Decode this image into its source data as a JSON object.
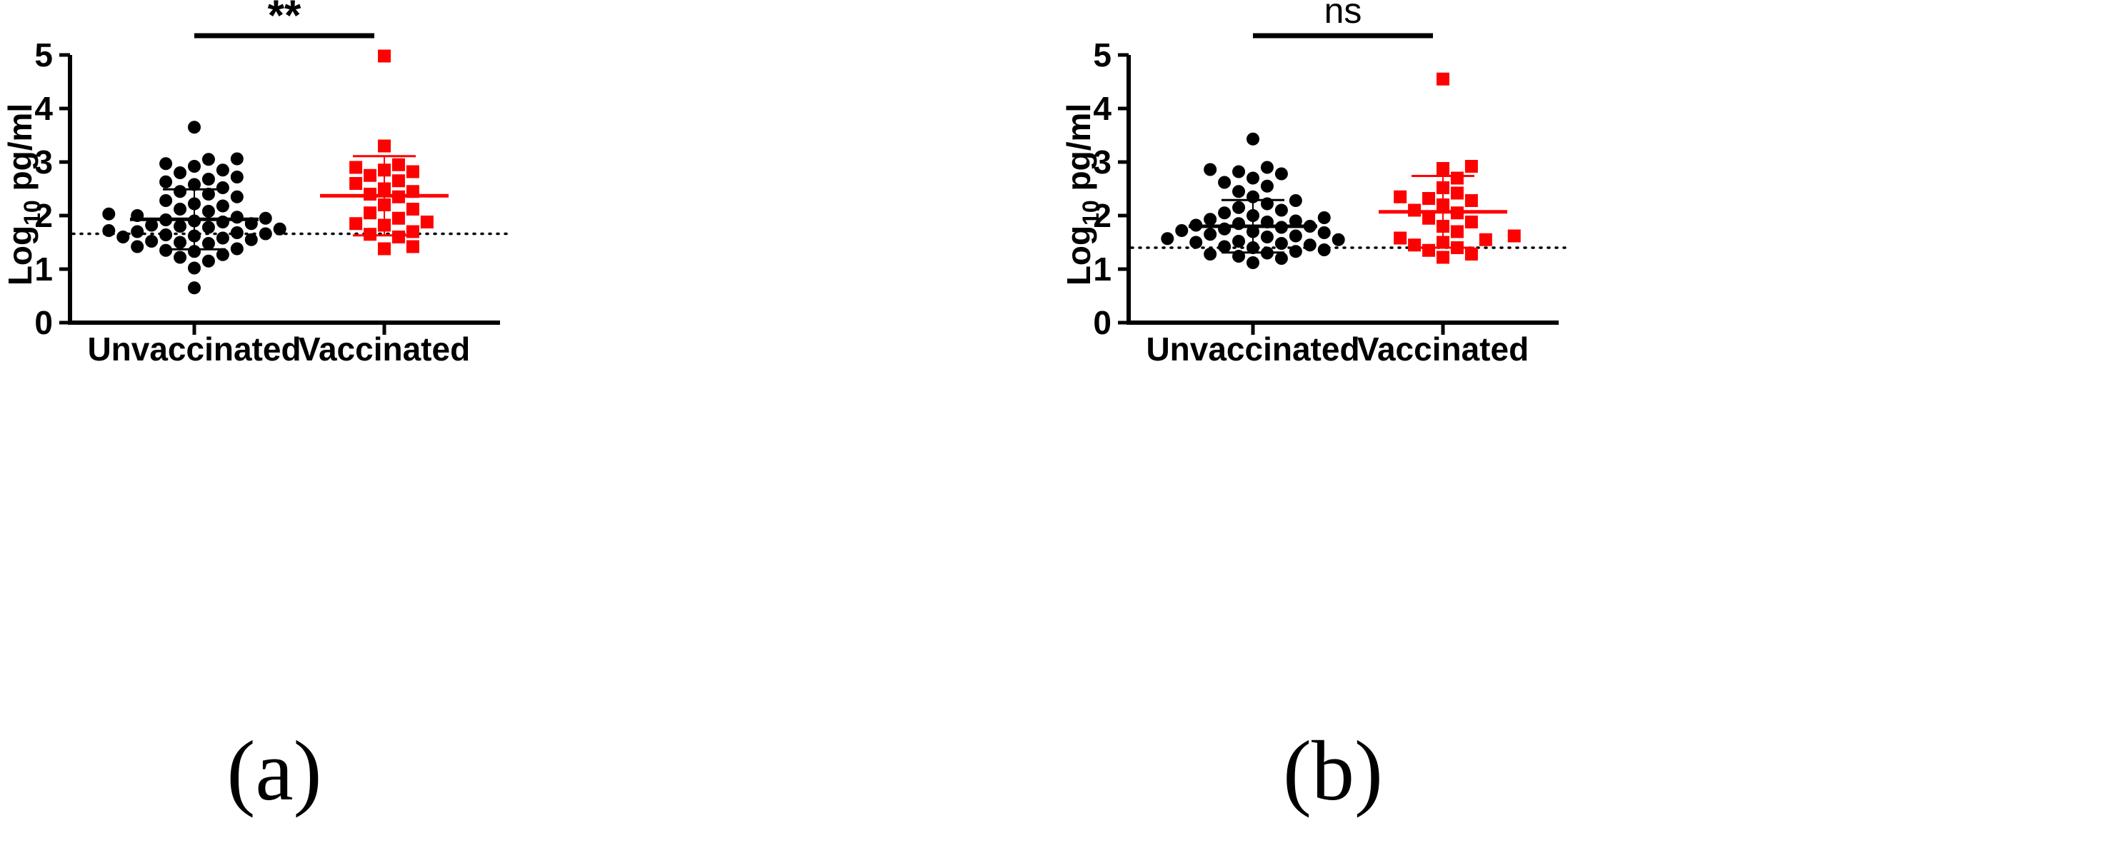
{
  "chart_data": [
    {
      "type": "scatter",
      "panel_label": "(a)",
      "ylabel_main": "Log",
      "ylabel_sub": "10",
      "ylabel_unit": " pg/ml",
      "ylim": [
        0,
        5
      ],
      "yticks": [
        0,
        1,
        2,
        3,
        4,
        5
      ],
      "categories": [
        "Unvaccinated",
        "Vaccinated"
      ],
      "significance": "**",
      "detection_limit": 1.66,
      "series": [
        {
          "name": "Unvaccinated",
          "color": "#000000",
          "marker": "circle",
          "mean": 1.93,
          "sd_upper": 2.49,
          "sd_lower": 1.37,
          "values": [
            0.65,
            1.02,
            1.15,
            1.22,
            1.27,
            1.33,
            1.35,
            1.38,
            1.42,
            1.48,
            1.5,
            1.52,
            1.55,
            1.58,
            1.6,
            1.62,
            1.64,
            1.66,
            1.68,
            1.7,
            1.72,
            1.75,
            1.78,
            1.8,
            1.82,
            1.85,
            1.88,
            1.9,
            1.92,
            1.95,
            1.97,
            2.0,
            2.03,
            2.08,
            2.12,
            2.18,
            2.22,
            2.28,
            2.35,
            2.4,
            2.45,
            2.52,
            2.58,
            2.63,
            2.68,
            2.72,
            2.8,
            2.85,
            2.92,
            2.97,
            3.05,
            3.06,
            3.65
          ]
        },
        {
          "name": "Vaccinated",
          "color": "#ff0000",
          "marker": "square",
          "mean": 2.37,
          "sd_upper": 3.11,
          "sd_lower": 1.63,
          "values": [
            1.38,
            1.42,
            1.6,
            1.65,
            1.7,
            1.82,
            1.85,
            1.88,
            1.95,
            2.05,
            2.12,
            2.2,
            2.35,
            2.4,
            2.45,
            2.5,
            2.6,
            2.65,
            2.75,
            2.82,
            2.85,
            2.9,
            2.95,
            3.3,
            4.98
          ]
        }
      ]
    },
    {
      "type": "scatter",
      "panel_label": "(b)",
      "ylabel_main": "Log",
      "ylabel_sub": "10",
      "ylabel_unit": " pg/ml",
      "ylim": [
        0,
        5
      ],
      "yticks": [
        0,
        1,
        2,
        3,
        4,
        5
      ],
      "categories": [
        "Unvaccinated",
        "Vaccinated"
      ],
      "significance": "ns",
      "detection_limit": 1.4,
      "series": [
        {
          "name": "Unvaccinated",
          "color": "#000000",
          "marker": "circle",
          "mean": 1.8,
          "sd_upper": 2.29,
          "sd_lower": 1.31,
          "values": [
            1.12,
            1.2,
            1.24,
            1.28,
            1.3,
            1.33,
            1.36,
            1.4,
            1.42,
            1.45,
            1.48,
            1.5,
            1.52,
            1.55,
            1.57,
            1.6,
            1.62,
            1.65,
            1.68,
            1.7,
            1.72,
            1.75,
            1.78,
            1.8,
            1.82,
            1.85,
            1.88,
            1.9,
            1.93,
            1.96,
            2.0,
            2.05,
            2.1,
            2.15,
            2.22,
            2.28,
            2.35,
            2.45,
            2.55,
            2.62,
            2.7,
            2.78,
            2.82,
            2.86,
            2.9,
            3.43
          ]
        },
        {
          "name": "Vaccinated",
          "color": "#ff0000",
          "marker": "square",
          "mean": 2.07,
          "sd_upper": 2.74,
          "sd_lower": 1.4,
          "values": [
            1.22,
            1.28,
            1.35,
            1.4,
            1.45,
            1.5,
            1.55,
            1.58,
            1.62,
            1.7,
            1.8,
            1.88,
            1.95,
            2.05,
            2.1,
            2.2,
            2.28,
            2.32,
            2.35,
            2.42,
            2.52,
            2.7,
            2.88,
            2.92,
            4.55
          ]
        }
      ]
    }
  ]
}
